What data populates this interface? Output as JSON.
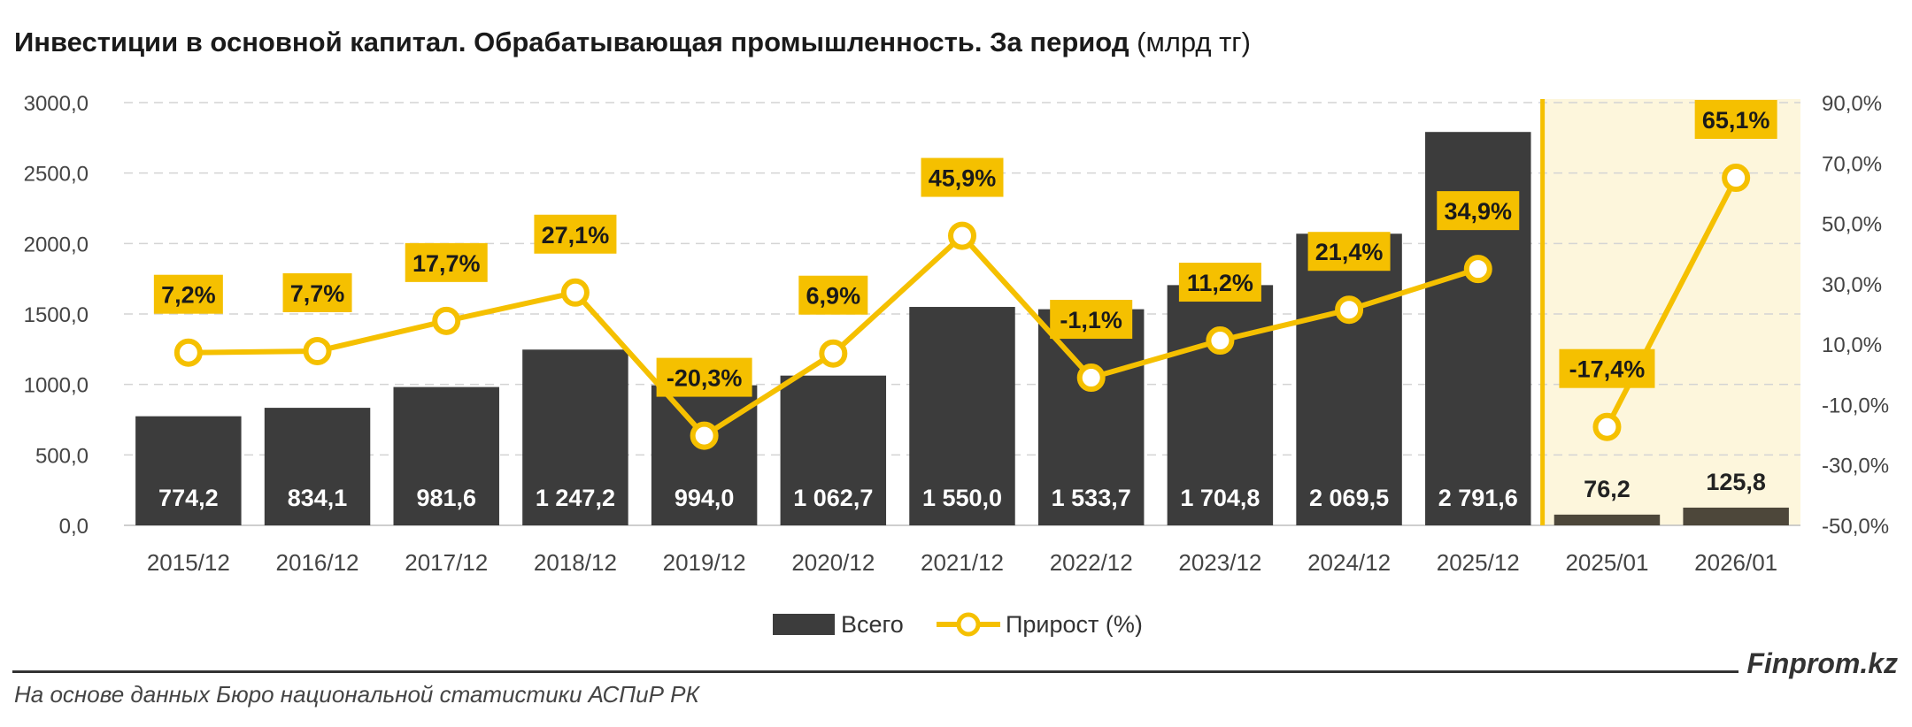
{
  "title_main": "Инвестиции в основной капитал. Обрабатывающая промышленность. За период",
  "title_unit": "(млрд тг)",
  "brand": "Finprom.kz",
  "source": "На основе данных Бюро национальной статистики АСПиР РК",
  "colors": {
    "bar": "#3c3c3c",
    "bar_recent": "#4d473a",
    "line": "#f5c000",
    "label_bg": "#f5c000",
    "highlight_bg": "#fdf6dc"
  },
  "chart_data": {
    "type": "bar",
    "categories": [
      "2015/12",
      "2016/12",
      "2017/12",
      "2018/12",
      "2019/12",
      "2020/12",
      "2021/12",
      "2022/12",
      "2023/12",
      "2024/12",
      "2025/12",
      "2025/01",
      "2026/01"
    ],
    "series": [
      {
        "name": "Всего",
        "type": "bar",
        "axis": "left",
        "values": [
          774.2,
          834.1,
          981.6,
          1247.2,
          994.0,
          1062.7,
          1550.0,
          1533.7,
          1704.8,
          2069.5,
          2791.6,
          76.2,
          125.8
        ],
        "labels": [
          "774,2",
          "834,1",
          "981,6",
          "1 247,2",
          "994,0",
          "1 062,7",
          "1 550,0",
          "1 533,7",
          "1 704,8",
          "2 069,5",
          "2 791,6",
          "76,2",
          "125,8"
        ]
      },
      {
        "name": "Прирост (%)",
        "type": "line",
        "axis": "right",
        "values": [
          7.2,
          7.7,
          17.7,
          27.1,
          -20.3,
          6.9,
          45.9,
          -1.1,
          11.2,
          21.4,
          34.9,
          -17.4,
          65.1
        ],
        "labels": [
          "7,2%",
          "7,7%",
          "17,7%",
          "27,1%",
          "-20,3%",
          "6,9%",
          "45,9%",
          "-1,1%",
          "11,2%",
          "21,4%",
          "34,9%",
          "-17,4%",
          "65,1%"
        ]
      }
    ],
    "y_left": {
      "lim": [
        0,
        3000
      ],
      "ticks": [
        "0,0",
        "500,0",
        "1000,0",
        "1500,0",
        "2000,0",
        "2500,0",
        "3000,0"
      ]
    },
    "y_right": {
      "lim": [
        -50,
        90
      ],
      "ticks": [
        "-50,0%",
        "-30,0%",
        "-10,0%",
        "10,0%",
        "30,0%",
        "50,0%",
        "70,0%",
        "90,0%"
      ]
    },
    "grid": true,
    "legend": "bottom",
    "highlight_last_categories": 2
  }
}
